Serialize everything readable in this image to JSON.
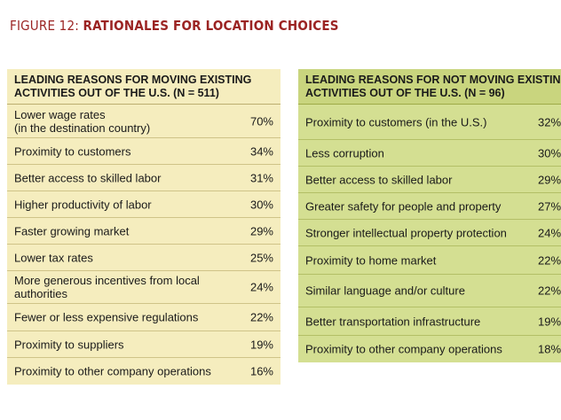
{
  "figure": {
    "number": "FIGURE 12:",
    "title": "RATIONALES FOR LOCATION CHOICES"
  },
  "left_table": {
    "header_line1": "LEADING REASONS FOR MOVING EXISTING",
    "header_line2": "ACTIVITIES OUT OF THE U.S. (N = 511)",
    "rows": [
      {
        "label": "Lower wage rates\n(in the destination country)",
        "value": "70%"
      },
      {
        "label": "Proximity to customers",
        "value": "34%"
      },
      {
        "label": "Better access to skilled labor",
        "value": "31%"
      },
      {
        "label": "Higher productivity of labor",
        "value": "30%"
      },
      {
        "label": "Faster growing market",
        "value": "29%"
      },
      {
        "label": "Lower tax rates",
        "value": "25%"
      },
      {
        "label": "More generous incentives from local\nauthorities",
        "value": "24%"
      },
      {
        "label": "Fewer or less expensive regulations",
        "value": "22%"
      },
      {
        "label": "Proximity to suppliers",
        "value": "19%"
      },
      {
        "label": "Proximity to other company operations",
        "value": "16%"
      }
    ]
  },
  "right_table": {
    "header_line1": "LEADING REASONS FOR NOT MOVING EXISTING",
    "header_line2": "ACTIVITIES OUT OF THE U.S. (N = 96)",
    "rows": [
      {
        "label": "Proximity to customers (in the U.S.)",
        "value": "32%"
      },
      {
        "label": "Less corruption",
        "value": "30%"
      },
      {
        "label": "Better access to skilled labor",
        "value": "29%"
      },
      {
        "label": "Greater safety for people and property",
        "value": "27%"
      },
      {
        "label": "Stronger intellectual property protection",
        "value": "24%"
      },
      {
        "label": "Proximity to home market",
        "value": "22%"
      },
      {
        "label": "Similar language and/or culture",
        "value": "22%"
      },
      {
        "label": "Better transportation infrastructure",
        "value": "19%"
      },
      {
        "label": "Proximity to other company operations",
        "value": "18%"
      }
    ]
  }
}
